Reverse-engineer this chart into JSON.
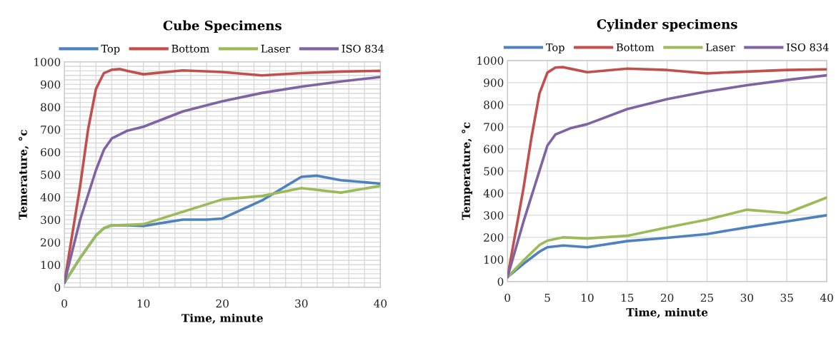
{
  "chart_data": [
    {
      "type": "line",
      "title": "Cube Specimens",
      "xlabel": "Time, minute",
      "ylabel": "Temerature, °c",
      "legend": "top",
      "grid": true,
      "line_style": "solid",
      "marker": "none",
      "xlim": [
        0,
        40
      ],
      "ylim": [
        0,
        1000
      ],
      "xticks": [
        0,
        {
          "value": 2,
          "label": null
        },
        {
          "value": 4,
          "label": null
        },
        {
          "value": 6,
          "label": null
        },
        {
          "value": 8,
          "label": null
        },
        10,
        {
          "value": 12,
          "label": null
        },
        {
          "value": 14,
          "label": null
        },
        {
          "value": 16,
          "label": null
        },
        {
          "value": 18,
          "label": null
        },
        20,
        {
          "value": 22,
          "label": null
        },
        {
          "value": 24,
          "label": null
        },
        {
          "value": 26,
          "label": null
        },
        {
          "value": 28,
          "label": null
        },
        30,
        {
          "value": 32,
          "label": null
        },
        {
          "value": 34,
          "label": null
        },
        {
          "value": 36,
          "label": null
        },
        {
          "value": 38,
          "label": null
        },
        40
      ],
      "yticks": [
        0,
        {
          "value": 20,
          "label": null
        },
        {
          "value": 40,
          "label": null
        },
        {
          "value": 60,
          "label": null
        },
        {
          "value": 80,
          "label": null
        },
        100,
        {
          "value": 120,
          "label": null
        },
        {
          "value": 140,
          "label": null
        },
        {
          "value": 160,
          "label": null
        },
        {
          "value": 180,
          "label": null
        },
        200,
        {
          "value": 220,
          "label": null
        },
        {
          "value": 240,
          "label": null
        },
        {
          "value": 260,
          "label": null
        },
        {
          "value": 280,
          "label": null
        },
        300,
        {
          "value": 320,
          "label": null
        },
        {
          "value": 340,
          "label": null
        },
        {
          "value": 360,
          "label": null
        },
        {
          "value": 380,
          "label": null
        },
        400,
        {
          "value": 420,
          "label": null
        },
        {
          "value": 440,
          "label": null
        },
        {
          "value": 460,
          "label": null
        },
        {
          "value": 480,
          "label": null
        },
        500,
        {
          "value": 520,
          "label": null
        },
        {
          "value": 540,
          "label": null
        },
        {
          "value": 560,
          "label": null
        },
        {
          "value": 580,
          "label": null
        },
        600,
        {
          "value": 620,
          "label": null
        },
        {
          "value": 640,
          "label": null
        },
        {
          "value": 660,
          "label": null
        },
        {
          "value": 680,
          "label": null
        },
        700,
        {
          "value": 720,
          "label": null
        },
        {
          "value": 740,
          "label": null
        },
        {
          "value": 760,
          "label": null
        },
        {
          "value": 780,
          "label": null
        },
        800,
        {
          "value": 820,
          "label": null
        },
        {
          "value": 840,
          "label": null
        },
        {
          "value": 860,
          "label": null
        },
        {
          "value": 880,
          "label": null
        },
        900,
        {
          "value": 920,
          "label": null
        },
        {
          "value": 940,
          "label": null
        },
        {
          "value": 960,
          "label": null
        },
        {
          "value": 980,
          "label": null
        },
        1000
      ],
      "series": [
        {
          "name": "Top",
          "color": "#4f81bd",
          "x": [
            0,
            2,
            4,
            5,
            6,
            8,
            10,
            15,
            18,
            20,
            25,
            30,
            32,
            35,
            40
          ],
          "values": [
            20,
            130,
            230,
            262,
            275,
            275,
            272,
            300,
            300,
            305,
            385,
            490,
            495,
            475,
            460
          ]
        },
        {
          "name": "Bottom",
          "color": "#c0504d",
          "x": [
            0,
            2,
            3,
            4,
            5,
            6,
            7,
            8,
            10,
            15,
            20,
            25,
            30,
            35,
            40
          ],
          "values": [
            20,
            450,
            700,
            880,
            950,
            965,
            968,
            960,
            945,
            962,
            955,
            940,
            950,
            957,
            960
          ]
        },
        {
          "name": "Laser",
          "color": "#9bbb59",
          "x": [
            0,
            2,
            4,
            5,
            6,
            8,
            10,
            15,
            20,
            25,
            30,
            35,
            40
          ],
          "values": [
            20,
            130,
            230,
            262,
            275,
            277,
            280,
            335,
            390,
            405,
            440,
            420,
            450
          ]
        },
        {
          "name": "ISO 834",
          "color": "#8064a2",
          "x": [
            0,
            2,
            4,
            5,
            6,
            8,
            10,
            15,
            20,
            25,
            30,
            35,
            40
          ],
          "values": [
            20,
            300,
            520,
            610,
            660,
            695,
            712,
            780,
            825,
            862,
            890,
            913,
            933
          ]
        }
      ]
    },
    {
      "type": "line",
      "title": "Cylinder specimens",
      "xlabel": "Time, minute",
      "ylabel": "Temperature, °c",
      "legend": "top",
      "grid": true,
      "line_style": "solid",
      "marker": "none",
      "xlim": [
        0,
        40
      ],
      "ylim": [
        0,
        1000
      ],
      "xticks": [
        0,
        5,
        10,
        15,
        20,
        25,
        30,
        35,
        40
      ],
      "yticks": [
        0,
        100,
        200,
        300,
        400,
        500,
        600,
        700,
        800,
        900,
        1000
      ],
      "series": [
        {
          "name": "Top",
          "color": "#4f81bd",
          "x": [
            0,
            2,
            4,
            5,
            7,
            10,
            15,
            20,
            25,
            30,
            35,
            40
          ],
          "values": [
            20,
            80,
            135,
            155,
            163,
            155,
            183,
            198,
            215,
            245,
            272,
            300
          ]
        },
        {
          "name": "Bottom",
          "color": "#c0504d",
          "x": [
            0,
            2,
            3,
            4,
            5,
            6,
            7,
            8,
            10,
            15,
            20,
            25,
            30,
            35,
            40
          ],
          "values": [
            20,
            420,
            650,
            850,
            945,
            968,
            970,
            962,
            947,
            963,
            957,
            942,
            950,
            957,
            960
          ]
        },
        {
          "name": "Laser",
          "color": "#9bbb59",
          "x": [
            0,
            2,
            4,
            5,
            7,
            10,
            15,
            20,
            25,
            30,
            35,
            40
          ],
          "values": [
            20,
            95,
            165,
            185,
            200,
            195,
            207,
            245,
            280,
            325,
            310,
            380
          ]
        },
        {
          "name": "ISO 834",
          "color": "#8064a2",
          "x": [
            0,
            2,
            4,
            5,
            6,
            8,
            10,
            15,
            20,
            25,
            30,
            35,
            40
          ],
          "values": [
            20,
            270,
            500,
            615,
            665,
            695,
            712,
            780,
            825,
            860,
            888,
            912,
            933
          ]
        }
      ]
    }
  ]
}
